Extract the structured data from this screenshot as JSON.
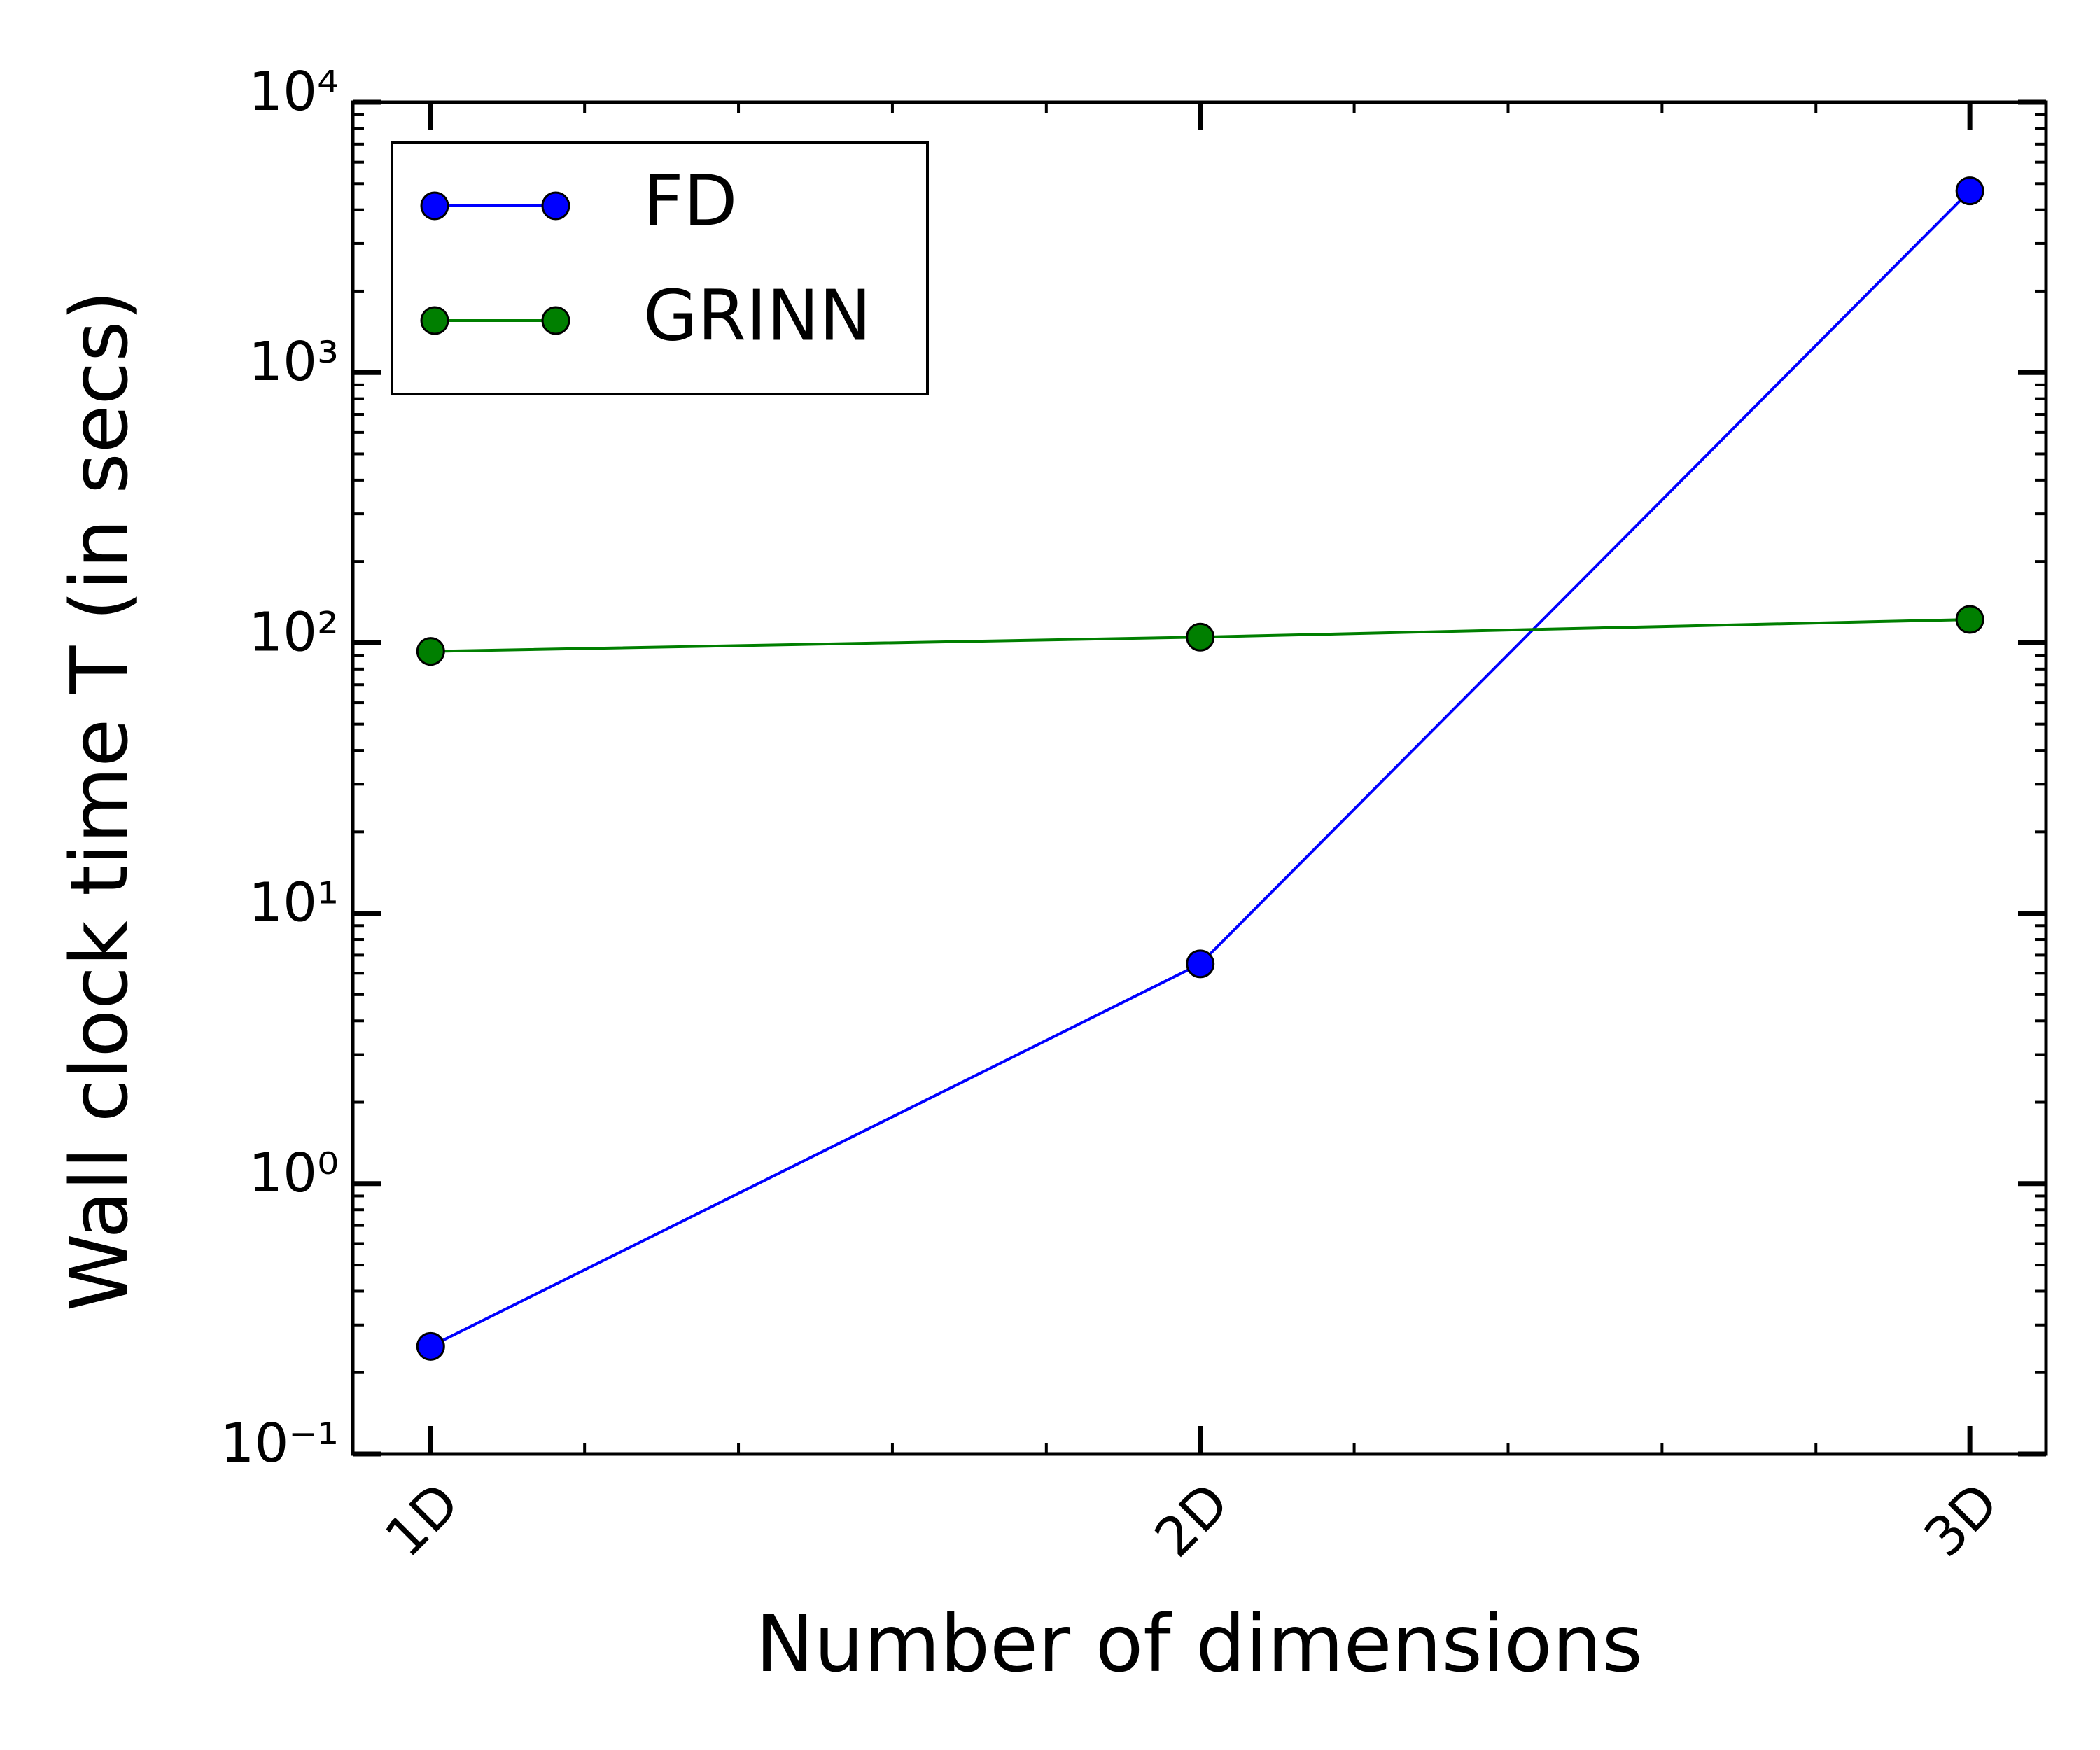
{
  "chart_data": {
    "type": "line",
    "x_label": "Number of dimensions",
    "y_label": "Wall clock time T (in secs)",
    "categories": [
      "1D",
      "2D",
      "3D"
    ],
    "series": [
      {
        "name": "FD",
        "color": "#0000ff",
        "values": [
          0.25,
          6.5,
          4700
        ]
      },
      {
        "name": "GRINN",
        "color": "#007f00",
        "values": [
          93,
          105,
          122
        ]
      }
    ],
    "log_y": true,
    "ylim": [
      0.1,
      10000
    ],
    "yticks": [
      {
        "value": 0.1,
        "label": "10⁻¹"
      },
      {
        "value": 1,
        "label": "10⁰"
      },
      {
        "value": 10,
        "label": "10¹"
      },
      {
        "value": 100,
        "label": "10²"
      },
      {
        "value": 1000,
        "label": "10³"
      },
      {
        "value": 10000,
        "label": "10⁴"
      }
    ],
    "legend": "upper left"
  }
}
